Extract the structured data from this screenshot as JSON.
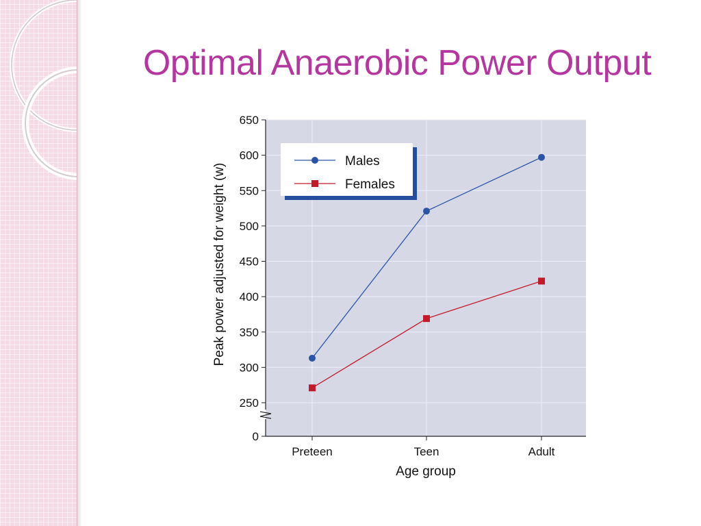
{
  "slide": {
    "title": "Optimal Anaerobic Power Output"
  },
  "chart_data": {
    "type": "line",
    "title": "",
    "xlabel": "Age group",
    "ylabel": "Peak power adjusted for weight (w)",
    "categories": [
      "Preteen",
      "Teen",
      "Adult"
    ],
    "y_ticks": [
      0,
      250,
      300,
      350,
      400,
      450,
      500,
      550,
      600,
      650
    ],
    "ylim": [
      250,
      650
    ],
    "axis_break": true,
    "grid": true,
    "legend_position": "top-left",
    "series": [
      {
        "name": "Males",
        "values": [
          313,
          521,
          597
        ],
        "color": "#2a55a7",
        "marker": "circle"
      },
      {
        "name": "Females",
        "values": [
          271,
          369,
          422
        ],
        "color": "#c21a2a",
        "marker": "square"
      }
    ]
  },
  "colors": {
    "title": "#b5369f",
    "plot_background": "#d7d8e6",
    "legend_shadow": "#254e9e"
  }
}
